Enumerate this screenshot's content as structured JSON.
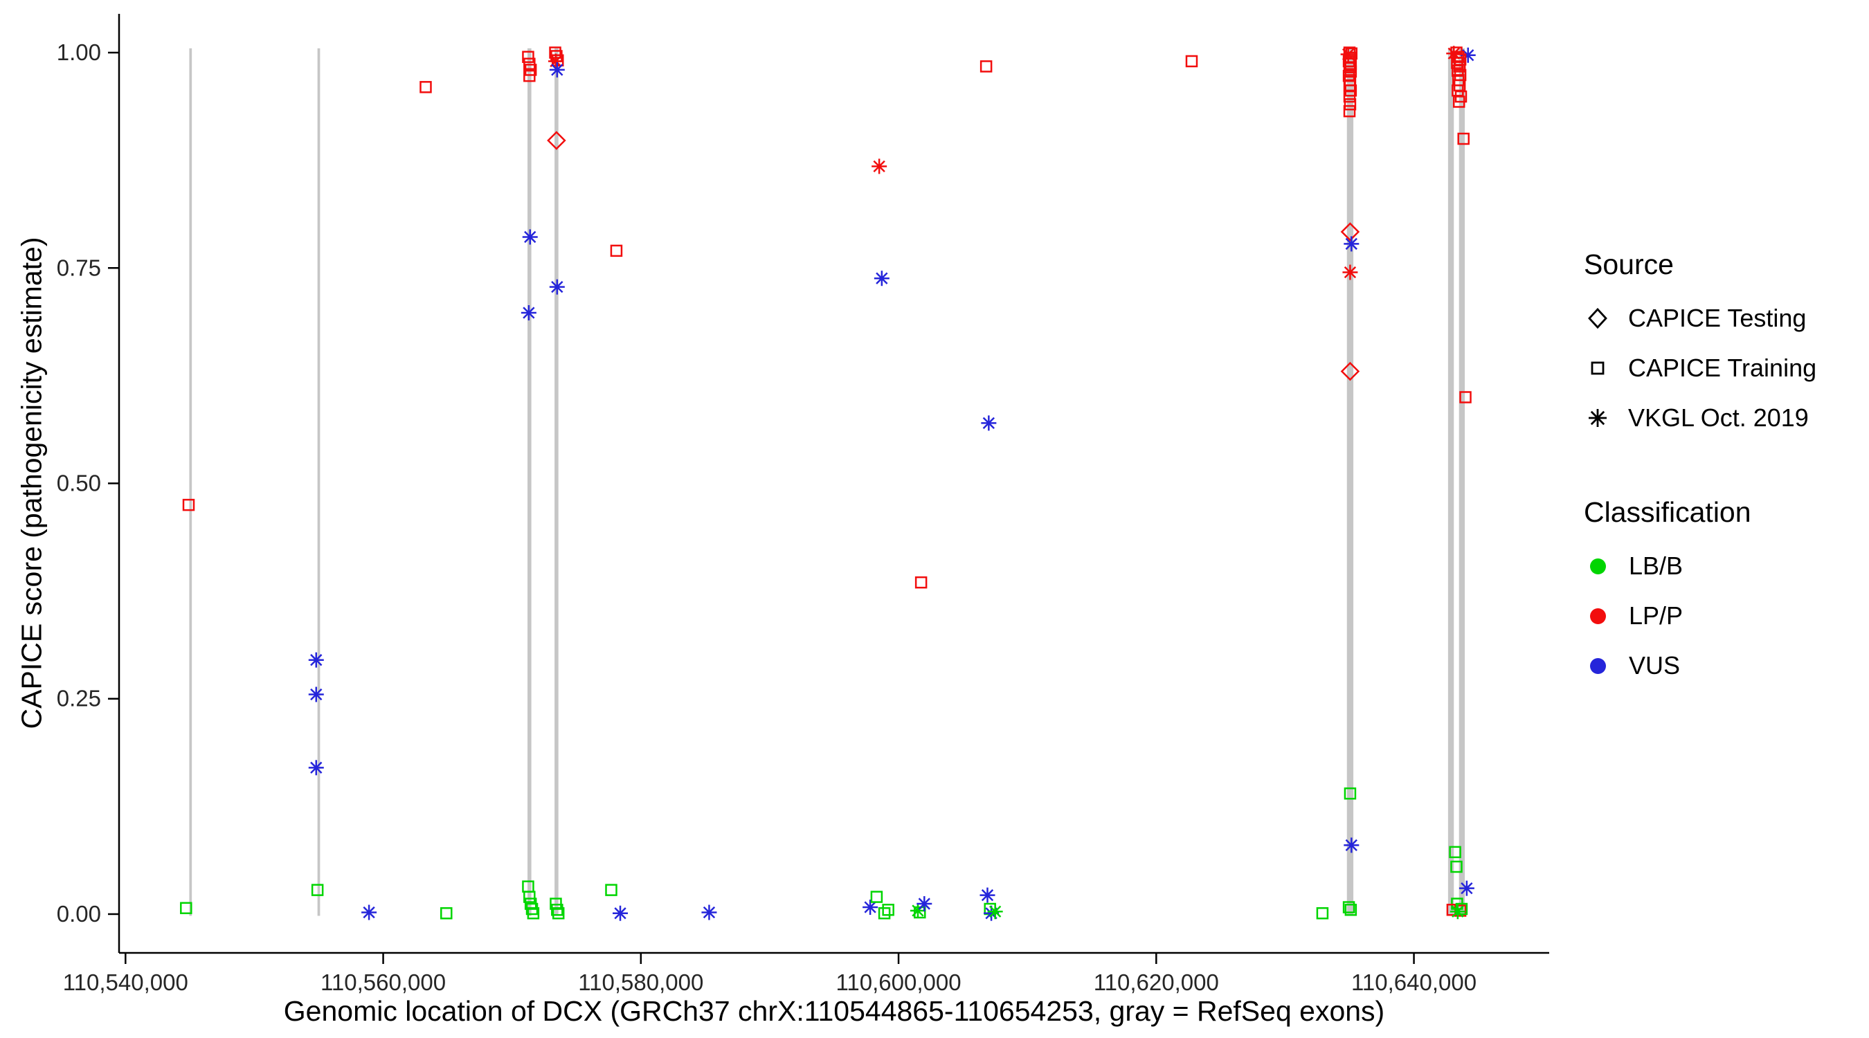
{
  "figure": {
    "xlabel": "Genomic location of DCX (GRCh37 chrX:110544865-110654253, gray = RefSeq exons)",
    "ylabel": "CAPICE score (pathogenicity estimate)"
  },
  "legend": {
    "source": {
      "title": "Source",
      "items": [
        {
          "label": "CAPICE Testing",
          "marker": "diamond"
        },
        {
          "label": "CAPICE Training",
          "marker": "square"
        },
        {
          "label": "VKGL Oct. 2019",
          "marker": "asterisk"
        }
      ]
    },
    "classification": {
      "title": "Classification",
      "items": [
        {
          "label": "LB/B",
          "color": "#00D500"
        },
        {
          "label": "LP/P",
          "color": "#F20D0D"
        },
        {
          "label": "VUS",
          "color": "#2525DA"
        }
      ]
    }
  },
  "chart_data": {
    "type": "scatter",
    "title": "",
    "xlabel": "Genomic location of DCX (GRCh37 chrX:110544865-110654253, gray = RefSeq exons)",
    "ylabel": "CAPICE score (pathogenicity estimate)",
    "xlim": [
      110539500,
      110650500
    ],
    "ylim": [
      -0.045,
      1.045
    ],
    "grid": false,
    "legend_position": "right",
    "x_ticks": [
      {
        "value": 110540000,
        "label": "110,540,000"
      },
      {
        "value": 110560000,
        "label": "110,560,000"
      },
      {
        "value": 110580000,
        "label": "110,580,000"
      },
      {
        "value": 110600000,
        "label": "110,600,000"
      },
      {
        "value": 110620000,
        "label": "110,620,000"
      },
      {
        "value": 110640000,
        "label": "110,640,000"
      }
    ],
    "y_ticks": [
      {
        "value": 0.0,
        "label": "0.00"
      },
      {
        "value": 0.25,
        "label": "0.25"
      },
      {
        "value": 0.5,
        "label": "0.50"
      },
      {
        "value": 0.75,
        "label": "0.75"
      },
      {
        "value": 1.0,
        "label": "1.00"
      }
    ],
    "exon_color": "#C6C6C6",
    "exons": [
      {
        "start": 110544950,
        "end": 110545150
      },
      {
        "start": 110554900,
        "end": 110555100
      },
      {
        "start": 110571200,
        "end": 110571500
      },
      {
        "start": 110573300,
        "end": 110573600
      },
      {
        "start": 110634800,
        "end": 110635300
      },
      {
        "start": 110642650,
        "end": 110643100
      },
      {
        "start": 110643500,
        "end": 110643950
      }
    ],
    "colors": {
      "LB/B": "#00D500",
      "LP/P": "#F20D0D",
      "VUS": "#2525DA"
    },
    "markers": {
      "CAPICE Testing": "diamond",
      "CAPICE Training": "square",
      "VKGL Oct. 2019": "asterisk"
    },
    "points": {
      "columns": [
        "x",
        "y",
        "source",
        "classification"
      ],
      "rows": [
        [
          110544700,
          0.007,
          "CAPICE Training",
          "LB/B"
        ],
        [
          110544900,
          0.475,
          "CAPICE Training",
          "LP/P"
        ],
        [
          110554800,
          0.295,
          "VKGL Oct. 2019",
          "VUS"
        ],
        [
          110554800,
          0.255,
          "VKGL Oct. 2019",
          "VUS"
        ],
        [
          110554800,
          0.17,
          "VKGL Oct. 2019",
          "VUS"
        ],
        [
          110554900,
          0.028,
          "CAPICE Training",
          "LB/B"
        ],
        [
          110558900,
          0.002,
          "VKGL Oct. 2019",
          "VUS"
        ],
        [
          110563300,
          0.96,
          "CAPICE Training",
          "LP/P"
        ],
        [
          110564900,
          0.001,
          "CAPICE Training",
          "LB/B"
        ],
        [
          110571250,
          0.995,
          "CAPICE Training",
          "LP/P"
        ],
        [
          110571350,
          0.987,
          "CAPICE Training",
          "LP/P"
        ],
        [
          110571450,
          0.98,
          "CAPICE Training",
          "LP/P"
        ],
        [
          110571350,
          0.973,
          "CAPICE Training",
          "LP/P"
        ],
        [
          110571400,
          0.786,
          "VKGL Oct. 2019",
          "VUS"
        ],
        [
          110571300,
          0.698,
          "VKGL Oct. 2019",
          "VUS"
        ],
        [
          110571250,
          0.032,
          "CAPICE Training",
          "LB/B"
        ],
        [
          110571350,
          0.02,
          "CAPICE Training",
          "LB/B"
        ],
        [
          110571450,
          0.012,
          "CAPICE Training",
          "LB/B"
        ],
        [
          110571550,
          0.006,
          "CAPICE Training",
          "LB/B"
        ],
        [
          110571650,
          0.001,
          "CAPICE Training",
          "LB/B"
        ],
        [
          110573350,
          1.0,
          "CAPICE Training",
          "LP/P"
        ],
        [
          110573450,
          0.996,
          "CAPICE Training",
          "LP/P"
        ],
        [
          110573550,
          0.991,
          "CAPICE Training",
          "LP/P"
        ],
        [
          110573400,
          0.99,
          "VKGL Oct. 2019",
          "LP/P"
        ],
        [
          110573500,
          0.98,
          "VKGL Oct. 2019",
          "VUS"
        ],
        [
          110573450,
          0.898,
          "CAPICE Testing",
          "LP/P"
        ],
        [
          110573500,
          0.728,
          "VKGL Oct. 2019",
          "VUS"
        ],
        [
          110573400,
          0.012,
          "CAPICE Training",
          "LB/B"
        ],
        [
          110573500,
          0.005,
          "CAPICE Training",
          "LB/B"
        ],
        [
          110573600,
          0.001,
          "CAPICE Training",
          "LB/B"
        ],
        [
          110577700,
          0.028,
          "CAPICE Training",
          "LB/B"
        ],
        [
          110578100,
          0.77,
          "CAPICE Training",
          "LP/P"
        ],
        [
          110578400,
          0.001,
          "VKGL Oct. 2019",
          "VUS"
        ],
        [
          110585300,
          0.002,
          "VKGL Oct. 2019",
          "VUS"
        ],
        [
          110597800,
          0.008,
          "VKGL Oct. 2019",
          "VUS"
        ],
        [
          110598300,
          0.02,
          "CAPICE Training",
          "LB/B"
        ],
        [
          110598500,
          0.868,
          "VKGL Oct. 2019",
          "LP/P"
        ],
        [
          110598700,
          0.738,
          "VKGL Oct. 2019",
          "VUS"
        ],
        [
          110598900,
          0.001,
          "CAPICE Training",
          "LB/B"
        ],
        [
          110599200,
          0.005,
          "CAPICE Training",
          "LB/B"
        ],
        [
          110601500,
          0.004,
          "VKGL Oct. 2019",
          "LB/B"
        ],
        [
          110601650,
          0.002,
          "CAPICE Training",
          "LB/B"
        ],
        [
          110601750,
          0.385,
          "CAPICE Training",
          "LP/P"
        ],
        [
          110602000,
          0.012,
          "VKGL Oct. 2019",
          "VUS"
        ],
        [
          110606800,
          0.984,
          "CAPICE Training",
          "LP/P"
        ],
        [
          110607000,
          0.57,
          "VKGL Oct. 2019",
          "VUS"
        ],
        [
          110606900,
          0.022,
          "VKGL Oct. 2019",
          "VUS"
        ],
        [
          110607100,
          0.006,
          "CAPICE Training",
          "LB/B"
        ],
        [
          110607200,
          0.001,
          "VKGL Oct. 2019",
          "VUS"
        ],
        [
          110607500,
          0.003,
          "VKGL Oct. 2019",
          "LB/B"
        ],
        [
          110622750,
          0.99,
          "CAPICE Training",
          "LP/P"
        ],
        [
          110632900,
          0.001,
          "CAPICE Training",
          "LB/B"
        ],
        [
          110635000,
          1.0,
          "CAPICE Training",
          "LP/P"
        ],
        [
          110635150,
          0.999,
          "CAPICE Training",
          "LP/P"
        ],
        [
          110634900,
          0.998,
          "VKGL Oct. 2019",
          "LP/P"
        ],
        [
          110635050,
          0.994,
          "CAPICE Training",
          "LP/P"
        ],
        [
          110634950,
          0.99,
          "CAPICE Training",
          "LP/P"
        ],
        [
          110635100,
          0.987,
          "CAPICE Training",
          "LP/P"
        ],
        [
          110635000,
          0.983,
          "CAPICE Training",
          "LP/P"
        ],
        [
          110635100,
          0.978,
          "CAPICE Training",
          "LP/P"
        ],
        [
          110634950,
          0.973,
          "CAPICE Training",
          "LP/P"
        ],
        [
          110635050,
          0.968,
          "CAPICE Training",
          "LP/P"
        ],
        [
          110635000,
          0.962,
          "CAPICE Training",
          "LP/P"
        ],
        [
          110635100,
          0.956,
          "CAPICE Training",
          "LP/P"
        ],
        [
          110635000,
          0.949,
          "CAPICE Training",
          "LP/P"
        ],
        [
          110635050,
          0.94,
          "CAPICE Training",
          "LP/P"
        ],
        [
          110635000,
          0.932,
          "CAPICE Training",
          "LP/P"
        ],
        [
          110635050,
          0.792,
          "CAPICE Testing",
          "LP/P"
        ],
        [
          110635150,
          0.778,
          "VKGL Oct. 2019",
          "VUS"
        ],
        [
          110635050,
          0.745,
          "VKGL Oct. 2019",
          "LP/P"
        ],
        [
          110635050,
          0.63,
          "CAPICE Testing",
          "LP/P"
        ],
        [
          110635050,
          0.14,
          "CAPICE Training",
          "LB/B"
        ],
        [
          110635150,
          0.08,
          "VKGL Oct. 2019",
          "VUS"
        ],
        [
          110634950,
          0.008,
          "CAPICE Training",
          "LB/B"
        ],
        [
          110635100,
          0.005,
          "CAPICE Training",
          "LB/B"
        ],
        [
          110643300,
          1.0,
          "CAPICE Training",
          "LP/P"
        ],
        [
          110643100,
          0.999,
          "VKGL Oct. 2019",
          "LP/P"
        ],
        [
          110644200,
          0.997,
          "VKGL Oct. 2019",
          "VUS"
        ],
        [
          110643450,
          0.995,
          "CAPICE Training",
          "LP/P"
        ],
        [
          110643600,
          0.992,
          "CAPICE Training",
          "LP/P"
        ],
        [
          110643350,
          0.988,
          "CAPICE Training",
          "LP/P"
        ],
        [
          110643550,
          0.984,
          "CAPICE Training",
          "LP/P"
        ],
        [
          110643400,
          0.979,
          "CAPICE Training",
          "LP/P"
        ],
        [
          110643600,
          0.974,
          "CAPICE Training",
          "LP/P"
        ],
        [
          110643450,
          0.968,
          "CAPICE Training",
          "LP/P"
        ],
        [
          110643550,
          0.962,
          "CAPICE Training",
          "LP/P"
        ],
        [
          110643400,
          0.956,
          "CAPICE Training",
          "LP/P"
        ],
        [
          110643650,
          0.949,
          "CAPICE Training",
          "LP/P"
        ],
        [
          110643500,
          0.943,
          "CAPICE Training",
          "LP/P"
        ],
        [
          110643850,
          0.9,
          "CAPICE Training",
          "LP/P"
        ],
        [
          110644000,
          0.6,
          "CAPICE Training",
          "LP/P"
        ],
        [
          110643200,
          0.072,
          "CAPICE Training",
          "LB/B"
        ],
        [
          110643300,
          0.055,
          "CAPICE Training",
          "LB/B"
        ],
        [
          110644100,
          0.03,
          "VKGL Oct. 2019",
          "VUS"
        ],
        [
          110643350,
          0.012,
          "CAPICE Training",
          "LB/B"
        ],
        [
          110643000,
          0.005,
          "CAPICE Training",
          "LP/P"
        ],
        [
          110643600,
          0.004,
          "CAPICE Training",
          "LP/P"
        ],
        [
          110643400,
          0.003,
          "VKGL Oct. 2019",
          "LB/B"
        ],
        [
          110643700,
          0.006,
          "CAPICE Training",
          "LB/B"
        ]
      ]
    }
  }
}
